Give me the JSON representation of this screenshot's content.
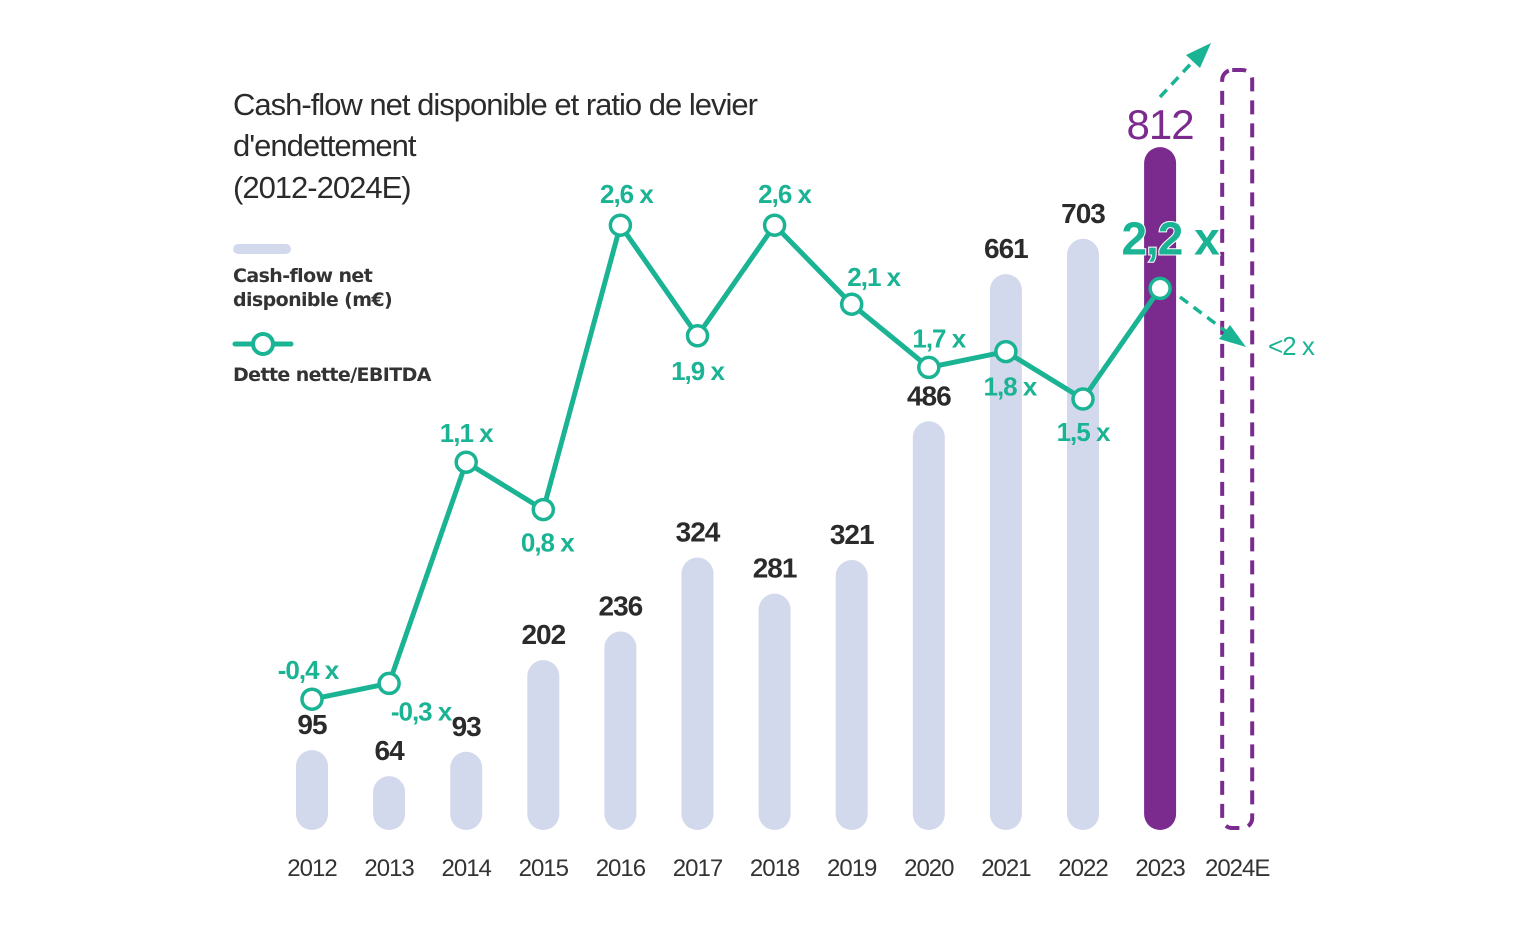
{
  "chart_data": {
    "type": "bar+line",
    "title_lines": [
      "Cash-flow net disponible et ratio de levier",
      "d'endettement",
      "(2012-2024E)"
    ],
    "categories": [
      "2012",
      "2013",
      "2014",
      "2015",
      "2016",
      "2017",
      "2018",
      "2019",
      "2020",
      "2021",
      "2022",
      "2023",
      "2024E"
    ],
    "series": [
      {
        "name": "Cash-flow net disponible (m€)",
        "type": "bar",
        "values": [
          95,
          64,
          93,
          202,
          236,
          324,
          281,
          321,
          486,
          661,
          703,
          812,
          null
        ],
        "labels": [
          "95",
          "64",
          "93",
          "202",
          "236",
          "324",
          "281",
          "321",
          "486",
          "661",
          "703",
          "812",
          ""
        ]
      },
      {
        "name": "Dette nette/EBITDA",
        "type": "line",
        "values": [
          -0.4,
          -0.3,
          1.1,
          0.8,
          2.6,
          1.9,
          2.6,
          2.1,
          1.7,
          1.8,
          1.5,
          2.2,
          null
        ],
        "labels": [
          "-0,4 x",
          "-0,3 x",
          "1,1 x",
          "0,8 x",
          "2,6 x",
          "1,9 x",
          "2,6 x",
          "2,1 x",
          "1,7 x",
          "1,8 x",
          "1,5 x",
          "2,2 x",
          ""
        ]
      }
    ],
    "forecast": {
      "category": "2024E",
      "ratio_label": "<2 x",
      "cashflow_trend": "up",
      "ratio_trend": "down"
    },
    "legend": [
      "Cash-flow net disponible (m€)",
      "Dette nette/EBITDA"
    ],
    "legend_lines": [
      [
        "Cash-flow net",
        "disponible (m€)"
      ],
      [
        "Dette nette/EBITDA"
      ]
    ],
    "legend_position": "top-left",
    "grid": false,
    "colors": {
      "bar": "#d3d9ec",
      "bar_highlight": "#7b2a8e",
      "line": "#1ab394",
      "text": "#2b2b2b"
    }
  }
}
